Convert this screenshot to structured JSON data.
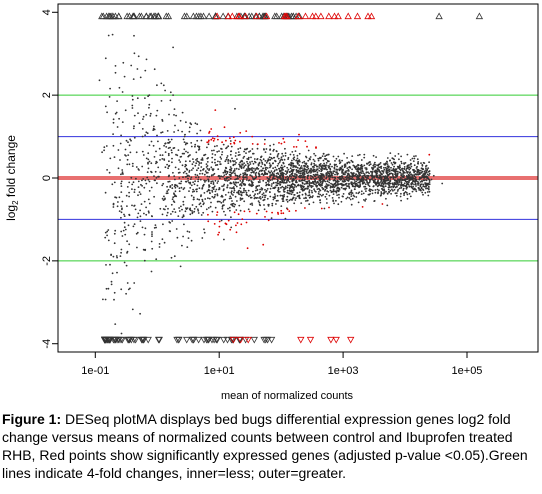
{
  "chart_data": {
    "type": "scatter",
    "title": "",
    "xlabel": "mean of normalized counts",
    "ylabel_base": "log",
    "ylabel_sub": "2",
    "ylabel_rest": " fold change",
    "x_scale": "log10",
    "xlim": [
      0.025,
      1400000
    ],
    "ylim": [
      -4.2,
      4.2
    ],
    "x_ticks": [
      {
        "value": 0.1,
        "label": "1e-01"
      },
      {
        "value": 10,
        "label": "1e+01"
      },
      {
        "value": 1000,
        "label": "1e+03"
      },
      {
        "value": 100000,
        "label": "1e+05"
      }
    ],
    "y_ticks": [
      {
        "value": 4,
        "label": "4"
      },
      {
        "value": 2,
        "label": "2"
      },
      {
        "value": 0,
        "label": "0"
      },
      {
        "value": -2,
        "label": "-2"
      },
      {
        "value": -4,
        "label": "-4"
      }
    ],
    "reference_lines": [
      {
        "y": 0,
        "color": "#e87070",
        "role": "zero"
      },
      {
        "y": 1,
        "color": "#3333dd",
        "role": "inner"
      },
      {
        "y": -1,
        "color": "#3333dd",
        "role": "inner"
      },
      {
        "y": 2,
        "color": "#33cc33",
        "role": "outer"
      },
      {
        "y": -2,
        "color": "#33cc33",
        "role": "outer"
      }
    ],
    "series": [
      {
        "role": "non-significant",
        "color": "#333333"
      },
      {
        "role": "significant (adjusted p-value < 0.05)",
        "color": "#dd0000"
      }
    ],
    "out_of_range_markers": "triangles at y = 4 and y = -4",
    "grid": false,
    "legend": "none"
  },
  "caption": {
    "label": "Figure 1:",
    "text": " DESeq plotMA displays bed bugs differential expression genes log2 fold change versus means of normalized counts between control and Ibuprofen treated RHB, Red points show significantly expressed genes (adjusted p-value <0.05).Green lines indicate 4-fold changes, inner=less; outer=greater."
  }
}
